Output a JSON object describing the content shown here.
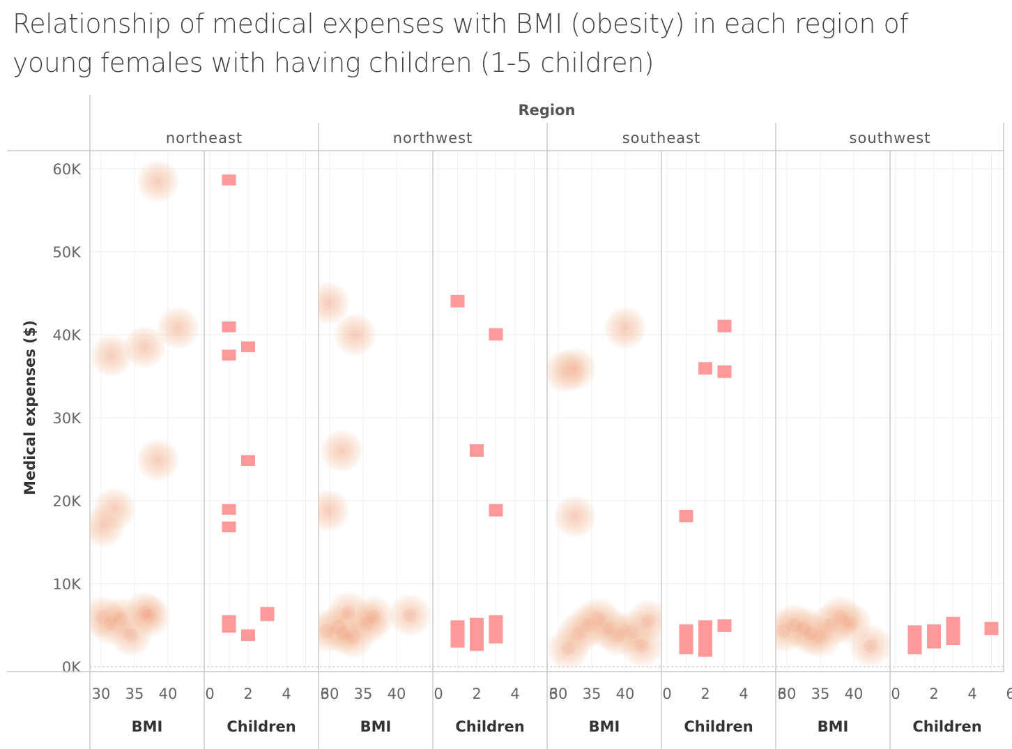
{
  "title": {
    "line1": "Relationship of medical expenses with BMI (obesity) in each region of",
    "line2": "young females with having children (1-5 children)"
  },
  "colors": {
    "bmi_density_light": "#f6d3bb",
    "bmi_density_dark": "#e8524f",
    "children_mark": "#ff9999",
    "grid": "#eeeeee",
    "divider": "#c8c8c8"
  },
  "chart_data": {
    "type": "scatter",
    "column_header": "Region",
    "ylabel": "Medical expenses ($)",
    "ylim": [
      -1000,
      61000
    ],
    "y_ticks": [
      {
        "value": 0,
        "label": "0K"
      },
      {
        "value": 10000,
        "label": "10K"
      },
      {
        "value": 20000,
        "label": "20K"
      },
      {
        "value": 30000,
        "label": "30K"
      },
      {
        "value": 40000,
        "label": "40K"
      },
      {
        "value": 50000,
        "label": "50K"
      },
      {
        "value": 60000,
        "label": "60K"
      }
    ],
    "measures": [
      {
        "name": "BMI",
        "mark": "density",
        "xlim": [
          28.5,
          43.5
        ],
        "ticks": [
          30,
          35,
          40
        ]
      },
      {
        "name": "Children",
        "mark": "bar",
        "xlim": [
          -0.5,
          6.2
        ],
        "ticks": [
          0,
          2,
          4,
          6
        ]
      }
    ],
    "regions": [
      {
        "name": "northeast",
        "bmi": [
          {
            "x": 38.5,
            "y": 58500
          },
          {
            "x": 41.5,
            "y": 40800
          },
          {
            "x": 31.5,
            "y": 37500
          },
          {
            "x": 36.5,
            "y": 38500
          },
          {
            "x": 38.5,
            "y": 24900
          },
          {
            "x": 32.0,
            "y": 19000
          },
          {
            "x": 30.3,
            "y": 16900
          },
          {
            "x": 30.2,
            "y": 6000
          },
          {
            "x": 31.5,
            "y": 5200
          },
          {
            "x": 33.0,
            "y": 5800
          },
          {
            "x": 34.5,
            "y": 3800
          },
          {
            "x": 36.5,
            "y": 6500
          },
          {
            "x": 37.2,
            "y": 6100
          }
        ],
        "children": [
          {
            "x": 1,
            "y_low": 58000,
            "y_high": 59300
          },
          {
            "x": 1,
            "y_low": 40300,
            "y_high": 41600
          },
          {
            "x": 2,
            "y_low": 37900,
            "y_high": 39200
          },
          {
            "x": 1,
            "y_low": 36900,
            "y_high": 38200
          },
          {
            "x": 2,
            "y_low": 24200,
            "y_high": 25500
          },
          {
            "x": 1,
            "y_low": 18300,
            "y_high": 19600
          },
          {
            "x": 1,
            "y_low": 16200,
            "y_high": 17500
          },
          {
            "x": 1,
            "y_low": 4100,
            "y_high": 6200
          },
          {
            "x": 2,
            "y_low": 3100,
            "y_high": 4500
          },
          {
            "x": 3,
            "y_low": 5500,
            "y_high": 7200
          }
        ]
      },
      {
        "name": "northwest",
        "bmi": [
          {
            "x": 29.8,
            "y": 43800
          },
          {
            "x": 33.8,
            "y": 40000
          },
          {
            "x": 31.8,
            "y": 26000
          },
          {
            "x": 29.8,
            "y": 18800
          },
          {
            "x": 29.5,
            "y": 4300
          },
          {
            "x": 31.3,
            "y": 4800
          },
          {
            "x": 32.0,
            "y": 4100
          },
          {
            "x": 32.8,
            "y": 6500
          },
          {
            "x": 33.5,
            "y": 3600
          },
          {
            "x": 35.5,
            "y": 5200
          },
          {
            "x": 36.5,
            "y": 6000
          },
          {
            "x": 42.0,
            "y": 6200
          }
        ],
        "children": [
          {
            "x": 1,
            "y_low": 43300,
            "y_high": 44800
          },
          {
            "x": 3,
            "y_low": 39300,
            "y_high": 40800
          },
          {
            "x": 2,
            "y_low": 25300,
            "y_high": 26800
          },
          {
            "x": 3,
            "y_low": 18100,
            "y_high": 19600
          },
          {
            "x": 1,
            "y_low": 2300,
            "y_high": 5600
          },
          {
            "x": 2,
            "y_low": 1900,
            "y_high": 5900
          },
          {
            "x": 3,
            "y_low": 2800,
            "y_high": 6200
          }
        ]
      },
      {
        "name": "southeast",
        "bmi": [
          {
            "x": 40.0,
            "y": 40800
          },
          {
            "x": 31.0,
            "y": 35600
          },
          {
            "x": 32.5,
            "y": 35900
          },
          {
            "x": 32.5,
            "y": 18100
          },
          {
            "x": 31.5,
            "y": 2200
          },
          {
            "x": 33.0,
            "y": 4000
          },
          {
            "x": 34.5,
            "y": 5000
          },
          {
            "x": 36.0,
            "y": 5800
          },
          {
            "x": 37.5,
            "y": 4600
          },
          {
            "x": 39.0,
            "y": 3800
          },
          {
            "x": 41.0,
            "y": 4200
          },
          {
            "x": 42.5,
            "y": 2500
          },
          {
            "x": 43.5,
            "y": 5500
          }
        ],
        "children": [
          {
            "x": 3,
            "y_low": 40300,
            "y_high": 41800
          },
          {
            "x": 2,
            "y_low": 35200,
            "y_high": 36700
          },
          {
            "x": 3,
            "y_low": 34800,
            "y_high": 36300
          },
          {
            "x": 1,
            "y_low": 17400,
            "y_high": 18900
          },
          {
            "x": 1,
            "y_low": 1500,
            "y_high": 5100
          },
          {
            "x": 2,
            "y_low": 1200,
            "y_high": 5600
          },
          {
            "x": 3,
            "y_low": 4200,
            "y_high": 5700
          }
        ]
      },
      {
        "name": "southwest",
        "bmi": [
          {
            "x": 29.5,
            "y": 4300
          },
          {
            "x": 31.0,
            "y": 5000
          },
          {
            "x": 32.5,
            "y": 4600
          },
          {
            "x": 33.5,
            "y": 4000
          },
          {
            "x": 35.0,
            "y": 3600
          },
          {
            "x": 36.5,
            "y": 5000
          },
          {
            "x": 38.0,
            "y": 6000
          },
          {
            "x": 39.5,
            "y": 5200
          },
          {
            "x": 42.5,
            "y": 2500
          }
        ],
        "children": [
          {
            "x": 1,
            "y_low": 1500,
            "y_high": 5000
          },
          {
            "x": 2,
            "y_low": 2200,
            "y_high": 5100
          },
          {
            "x": 3,
            "y_low": 2600,
            "y_high": 6000
          },
          {
            "x": 5,
            "y_low": 3800,
            "y_high": 5400
          }
        ]
      }
    ]
  }
}
